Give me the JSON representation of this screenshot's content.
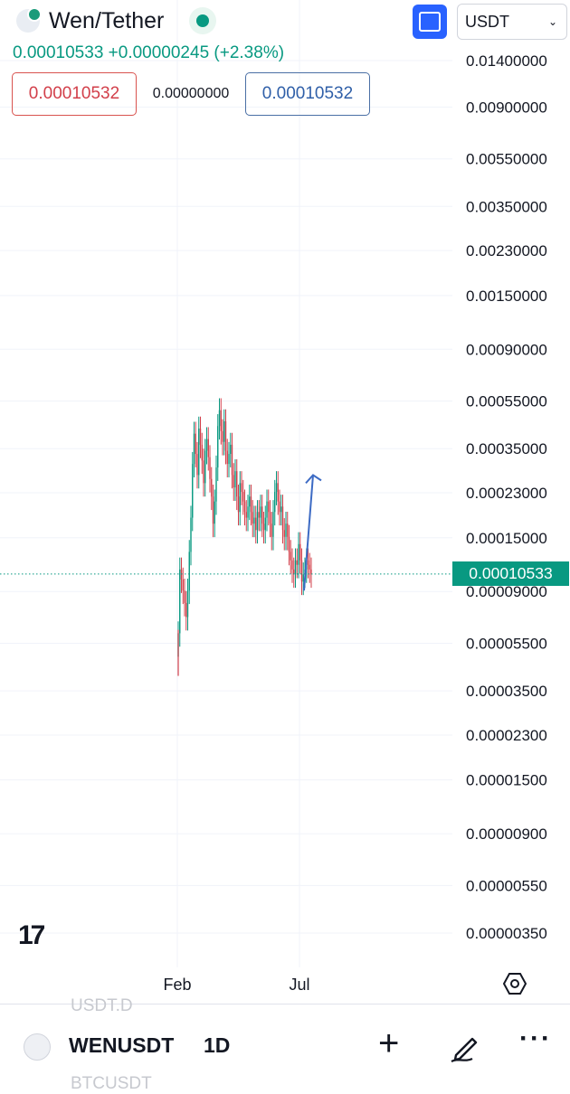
{
  "header": {
    "title": "Wen/Tether",
    "currency_selected": "USDT",
    "price_line": "0.00010533 +0.00000245 (+2.38%)"
  },
  "quote_boxes": {
    "bid": "0.00010532",
    "spread": "0.00000000",
    "ask": "0.00010532"
  },
  "price_tag": "0.00010533",
  "bottom_bar": {
    "symbol": "WENUSDT",
    "timeframe": "1D",
    "ghost_above": "USDT.D",
    "ghost_below": "BTCUSDT"
  },
  "icons": [
    "wen-logo-icon",
    "status-dot-icon",
    "fullscreen-icon",
    "chevron-down-icon",
    "tradingview-logo-icon",
    "settings-icon",
    "plus-icon",
    "drawing-pen-icon",
    "more-icon"
  ],
  "colors": {
    "up": "#089981",
    "down": "#d23f4a",
    "accent": "#2962ff",
    "arrow": "#3d6bc4"
  },
  "chart_data": {
    "type": "candlestick",
    "y_scale": "log",
    "y_tick_labels": [
      "0.01400000",
      "0.00900000",
      "0.00550000",
      "0.00350000",
      "0.00230000",
      "0.00150000",
      "0.00090000",
      "0.00055000",
      "0.00035000",
      "0.00023000",
      "0.00015000",
      "0.00009000",
      "0.00005500",
      "0.00003500",
      "0.00002300",
      "0.00001500",
      "0.00000900",
      "0.00000550",
      "0.00000350"
    ],
    "y_ticks": [
      0.014,
      0.009,
      0.0055,
      0.0035,
      0.0023,
      0.0015,
      0.0009,
      0.00055,
      0.00035,
      0.00023,
      0.00015,
      9e-05,
      5.5e-05,
      3.5e-05,
      2.3e-05,
      1.5e-05,
      9e-06,
      5.5e-06,
      3.5e-06
    ],
    "x_tick_labels": [
      "Feb",
      "Jul"
    ],
    "current_price": 0.00010533,
    "series_close": [
      6e-05,
      0.00011,
      0.0001,
      9e-05,
      8e-05,
      7e-05,
      9e-05,
      0.00013,
      0.00018,
      0.0003,
      0.0004,
      0.00033,
      0.00027,
      0.00042,
      0.00036,
      0.00031,
      0.00025,
      0.00034,
      0.00038,
      0.00032,
      0.00026,
      0.00022,
      0.00017,
      0.00021,
      0.00029,
      0.00043,
      0.0005,
      0.00041,
      0.00037,
      0.00045,
      0.00034,
      0.0003,
      0.00033,
      0.00036,
      0.00027,
      0.00024,
      0.00028,
      0.00022,
      0.00019,
      0.00025,
      0.00023,
      0.00021,
      0.00019,
      0.00018,
      0.0002,
      0.00022,
      0.00019,
      0.00017,
      0.00018,
      0.00016,
      0.00019,
      0.00018,
      0.0002,
      0.00017,
      0.00016,
      0.00018,
      0.00021,
      0.00019,
      0.00017,
      0.00015,
      0.00019,
      0.00023,
      0.00025,
      0.00021,
      0.00019,
      0.0002,
      0.00016,
      0.00015,
      0.00017,
      0.00015,
      0.00013,
      0.00012,
      0.00011,
      0.000105,
      0.00012,
      0.000115,
      0.00014,
      0.00012,
      9.8e-05,
      0.000105,
      0.00011,
      0.00012,
      0.000115,
      0.00011,
      0.000105
    ],
    "annotation_arrow": {
      "from_price": 9e-05,
      "to_price": 0.00027
    }
  }
}
